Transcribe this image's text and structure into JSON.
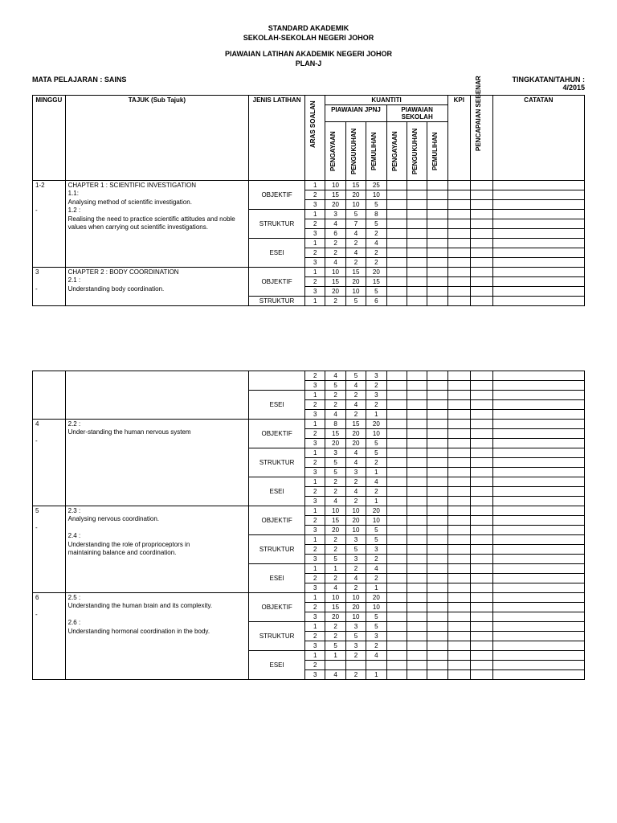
{
  "header": {
    "line1": "STANDARD AKADEMIK",
    "line2": "SEKOLAH-SEKOLAH NEGERI JOHOR",
    "line3": "PIAWAIAN LATIHAN AKADEMIK NEGERI JOHOR",
    "line4": "PLAN-J"
  },
  "meta": {
    "subject_label": "MATA PELAJARAN  : SAINS",
    "year_label": "TINGKATAN/TAHUN :",
    "year_value": "4/2015"
  },
  "cols": {
    "minggu": "MINGGU",
    "tajuk": "TAJUK (Sub Tajuk)",
    "jenis": "JENIS LATIHAN",
    "aras": "ARAS SOALAN",
    "kuantiti": "KUANTITI",
    "jpnj": "PIAWAIAN JPNJ",
    "sekolah": "PIAWAIAN SEKOLAH",
    "pengayaan": "PENGAYAAN",
    "pengukuhan": "PENGUKUHAN",
    "pemulihan": "PEMULIHAN",
    "kpi": "KPI",
    "pencapaian": "PENCAPAIAN SEBENAR",
    "catatan": "CATATAN"
  },
  "jenis": {
    "obj": "OBJEKTIF",
    "str": "STRUKTUR",
    "esei": "ESEI"
  },
  "sections": [
    {
      "minggu": "1-2\n\n\n-",
      "tajuk": "CHAPTER 1 :  SCIENTIFIC INVESTIGATION\n1.1:\nAnalysing method of   scientific investigation.\n1.2 :\nRealising the need to practice scientific attitudes and noble values when carrying out scientific investigations.",
      "groups": [
        {
          "jenis": "obj",
          "rows": [
            [
              "1",
              "10",
              "15",
              "25"
            ],
            [
              "2",
              "15",
              "20",
              "10"
            ],
            [
              "3",
              "20",
              "10",
              "5"
            ]
          ]
        },
        {
          "jenis": "str",
          "rows": [
            [
              "1",
              "3",
              "5",
              "8"
            ],
            [
              "2",
              "4",
              "7",
              "5"
            ],
            [
              "3",
              "6",
              "4",
              "2"
            ]
          ]
        },
        {
          "jenis": "esei",
          "rows": [
            [
              "1",
              "2",
              "2",
              "4"
            ],
            [
              "2",
              "2",
              "4",
              "2"
            ],
            [
              "3",
              "4",
              "2",
              "2"
            ]
          ]
        }
      ]
    },
    {
      "minggu": "3\n\n-",
      "tajuk": "CHAPTER 2 :  BODY COORDINATION\n2.1 :\nUnderstanding body coordination.",
      "groups": [
        {
          "jenis": "obj",
          "rows": [
            [
              "1",
              "10",
              "15",
              "20"
            ],
            [
              "2",
              "15",
              "20",
              "15"
            ],
            [
              "3",
              "20",
              "10",
              "5"
            ]
          ]
        },
        {
          "jenis": "str",
          "rows": [
            [
              "1",
              "2",
              "5",
              "6"
            ]
          ]
        }
      ]
    }
  ],
  "sections2": [
    {
      "minggu": "",
      "tajuk": "",
      "groups": [
        {
          "jenis": "",
          "rows": [
            [
              "2",
              "4",
              "5",
              "3"
            ],
            [
              "3",
              "5",
              "4",
              "2"
            ]
          ]
        },
        {
          "jenis": "esei",
          "rows": [
            [
              "1",
              "2",
              "2",
              "3"
            ],
            [
              "2",
              "2",
              "4",
              "2"
            ],
            [
              "3",
              "4",
              "2",
              "1"
            ]
          ]
        }
      ]
    },
    {
      "minggu": "4\n\n-",
      "tajuk": "2.2 :\nUnder-standing the human nervous system",
      "groups": [
        {
          "jenis": "obj",
          "rows": [
            [
              "1",
              "8",
              "15",
              "20"
            ],
            [
              "2",
              "15",
              "20",
              "10"
            ],
            [
              "3",
              "20",
              "20",
              "5"
            ]
          ]
        },
        {
          "jenis": "str",
          "rows": [
            [
              "1",
              "3",
              "4",
              "5"
            ],
            [
              "2",
              "5",
              "4",
              "2"
            ],
            [
              "3",
              "5",
              "3",
              "1"
            ]
          ]
        },
        {
          "jenis": "esei",
          "rows": [
            [
              "1",
              "2",
              "2",
              "4"
            ],
            [
              "2",
              "2",
              "4",
              "2"
            ],
            [
              "3",
              "4",
              "2",
              "1"
            ]
          ]
        }
      ]
    },
    {
      "minggu": "5\n\n-",
      "tajuk": "2.3 :\nAnalysing nervous coordination.\n\n2.4 :\nUnderstanding the role of proprioceptors in\nmaintaining balance and coordination.",
      "groups": [
        {
          "jenis": "obj",
          "rows": [
            [
              "1",
              "10",
              "10",
              "20"
            ],
            [
              "2",
              "15",
              "20",
              "10"
            ],
            [
              "3",
              "20",
              "10",
              "5"
            ]
          ]
        },
        {
          "jenis": "str",
          "rows": [
            [
              "1",
              "2",
              "3",
              "5"
            ],
            [
              "2",
              "2",
              "5",
              "3"
            ],
            [
              "3",
              "5",
              "3",
              "2"
            ]
          ]
        },
        {
          "jenis": "esei",
          "rows": [
            [
              "1",
              "1",
              "2",
              "4"
            ],
            [
              "2",
              "2",
              "4",
              "2"
            ],
            [
              "3",
              "4",
              "2",
              "1"
            ]
          ]
        }
      ]
    },
    {
      "minggu": "6\n\n-",
      "tajuk": "2.5 :\nUnderstanding the human brain and its complexity.\n\n2.6 :\nUnderstanding hormonal coordination in the body.",
      "groups": [
        {
          "jenis": "obj",
          "rows": [
            [
              "1",
              "10",
              "10",
              "20"
            ],
            [
              "2",
              "15",
              "20",
              "10"
            ],
            [
              "3",
              "20",
              "10",
              "5"
            ]
          ]
        },
        {
          "jenis": "str",
          "rows": [
            [
              "1",
              "2",
              "3",
              "5"
            ],
            [
              "2",
              "2",
              "5",
              "3"
            ],
            [
              "3",
              "5",
              "3",
              "2"
            ]
          ]
        },
        {
          "jenis": "esei",
          "rows": [
            [
              "1",
              "1",
              "2",
              "4"
            ],
            [
              "2",
              "",
              "",
              ""
            ],
            [
              "3",
              "4",
              "2",
              "1"
            ]
          ]
        }
      ]
    }
  ]
}
